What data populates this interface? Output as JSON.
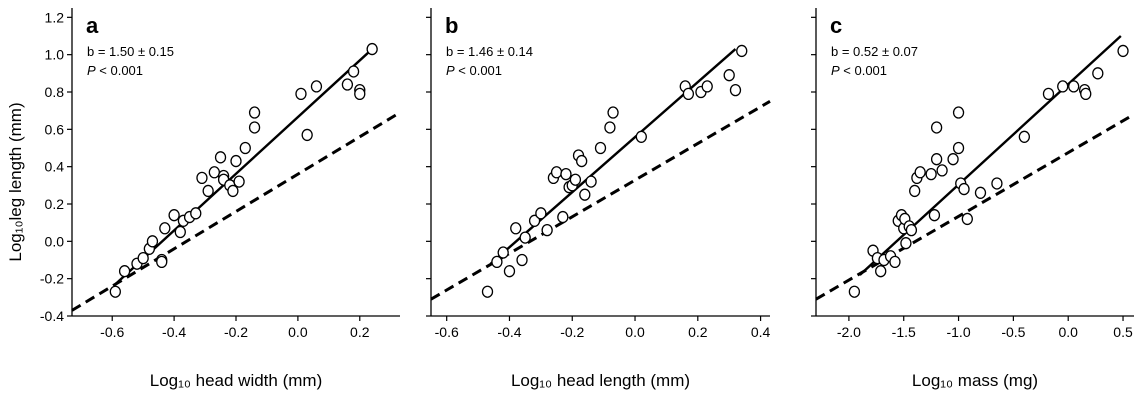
{
  "figure": {
    "y_axis_title": "Log₁₀leg length (mm)"
  },
  "chart_data": [
    {
      "type": "scatter",
      "panel_letter": "a",
      "stat_b": "b = 1.50 ± 0.15",
      "stat_p_label": "P",
      "stat_p_value": " < 0.001",
      "xlabel": "Log₁₀ head width (mm)",
      "ylabel": "Log₁₀leg length (mm)",
      "xlim": [
        -0.73,
        0.33
      ],
      "ylim": [
        -0.4,
        1.25
      ],
      "xticks": [
        -0.6,
        -0.4,
        -0.2,
        0.0,
        0.2
      ],
      "xtick_labels": [
        "-0.6",
        "-0.4",
        "-0.2",
        "0.0",
        "0.2"
      ],
      "yticks": [
        -0.4,
        -0.2,
        0.0,
        0.2,
        0.4,
        0.6,
        0.8,
        1.0,
        1.2
      ],
      "ytick_labels": [
        "-0.4",
        "-0.2",
        "0.0",
        "0.2",
        "0.4",
        "0.6",
        "0.8",
        "1.0",
        "1.2"
      ],
      "show_y_tick_labels": true,
      "points": [
        [
          -0.59,
          -0.27
        ],
        [
          -0.56,
          -0.16
        ],
        [
          -0.52,
          -0.12
        ],
        [
          -0.5,
          -0.09
        ],
        [
          -0.48,
          -0.04
        ],
        [
          -0.47,
          0.0
        ],
        [
          -0.44,
          -0.1
        ],
        [
          -0.44,
          -0.11
        ],
        [
          -0.43,
          0.07
        ],
        [
          -0.4,
          0.14
        ],
        [
          -0.38,
          0.05
        ],
        [
          -0.37,
          0.11
        ],
        [
          -0.35,
          0.13
        ],
        [
          -0.33,
          0.15
        ],
        [
          -0.31,
          0.34
        ],
        [
          -0.29,
          0.27
        ],
        [
          -0.27,
          0.37
        ],
        [
          -0.25,
          0.45
        ],
        [
          -0.24,
          0.35
        ],
        [
          -0.24,
          0.33
        ],
        [
          -0.22,
          0.3
        ],
        [
          -0.21,
          0.27
        ],
        [
          -0.2,
          0.43
        ],
        [
          -0.19,
          0.32
        ],
        [
          -0.17,
          0.5
        ],
        [
          -0.14,
          0.69
        ],
        [
          -0.14,
          0.61
        ],
        [
          0.01,
          0.79
        ],
        [
          0.03,
          0.57
        ],
        [
          0.06,
          0.83
        ],
        [
          0.16,
          0.84
        ],
        [
          0.18,
          0.91
        ],
        [
          0.2,
          0.81
        ],
        [
          0.2,
          0.79
        ],
        [
          0.24,
          1.03
        ]
      ],
      "solid_line": [
        [
          -0.59,
          -0.23
        ],
        [
          0.24,
          1.03
        ]
      ],
      "dashed_line": [
        [
          -0.73,
          -0.37
        ],
        [
          0.33,
          0.69
        ]
      ]
    },
    {
      "type": "scatter",
      "panel_letter": "b",
      "stat_b": "b = 1.46 ± 0.14",
      "stat_p_label": "P",
      "stat_p_value": " < 0.001",
      "xlabel": "Log₁₀ head length (mm)",
      "ylabel": "",
      "xlim": [
        -0.65,
        0.43
      ],
      "ylim": [
        -0.4,
        1.25
      ],
      "xticks": [
        -0.6,
        -0.4,
        -0.2,
        0.0,
        0.2,
        0.4
      ],
      "xtick_labels": [
        "-0.6",
        "-0.4",
        "-0.2",
        "0.0",
        "0.2",
        "0.4"
      ],
      "yticks": [
        -0.4,
        -0.2,
        0.0,
        0.2,
        0.4,
        0.6,
        0.8,
        1.0,
        1.2
      ],
      "ytick_labels": [],
      "show_y_tick_labels": false,
      "points": [
        [
          -0.47,
          -0.27
        ],
        [
          -0.44,
          -0.11
        ],
        [
          -0.42,
          -0.06
        ],
        [
          -0.4,
          -0.16
        ],
        [
          -0.38,
          0.07
        ],
        [
          -0.36,
          -0.1
        ],
        [
          -0.35,
          0.02
        ],
        [
          -0.32,
          0.11
        ],
        [
          -0.3,
          0.15
        ],
        [
          -0.28,
          0.06
        ],
        [
          -0.26,
          0.34
        ],
        [
          -0.25,
          0.37
        ],
        [
          -0.23,
          0.13
        ],
        [
          -0.22,
          0.36
        ],
        [
          -0.21,
          0.29
        ],
        [
          -0.2,
          0.3
        ],
        [
          -0.19,
          0.33
        ],
        [
          -0.18,
          0.46
        ],
        [
          -0.17,
          0.43
        ],
        [
          -0.16,
          0.25
        ],
        [
          -0.14,
          0.32
        ],
        [
          -0.11,
          0.5
        ],
        [
          -0.08,
          0.61
        ],
        [
          -0.07,
          0.69
        ],
        [
          0.02,
          0.56
        ],
        [
          0.16,
          0.83
        ],
        [
          0.17,
          0.79
        ],
        [
          0.21,
          0.8
        ],
        [
          0.23,
          0.83
        ],
        [
          0.3,
          0.89
        ],
        [
          0.32,
          0.81
        ],
        [
          0.34,
          1.02
        ]
      ],
      "solid_line": [
        [
          -0.46,
          -0.12
        ],
        [
          0.32,
          1.03
        ]
      ],
      "dashed_line": [
        [
          -0.65,
          -0.31
        ],
        [
          0.43,
          0.75
        ]
      ]
    },
    {
      "type": "scatter",
      "panel_letter": "c",
      "stat_b": "b = 0.52 ± 0.07",
      "stat_p_label": "P",
      "stat_p_value": " < 0.001",
      "xlabel": "Log₁₀ mass (mg)",
      "ylabel": "",
      "xlim": [
        -2.3,
        0.6
      ],
      "ylim": [
        -0.4,
        1.25
      ],
      "xticks": [
        -2.0,
        -1.5,
        -1.0,
        -0.5,
        0.0,
        0.5
      ],
      "xtick_labels": [
        "-2.0",
        "-1.5",
        "-1.0",
        "-0.5",
        "0.0",
        "0.5"
      ],
      "yticks": [
        -0.4,
        -0.2,
        0.0,
        0.2,
        0.4,
        0.6,
        0.8,
        1.0,
        1.2
      ],
      "ytick_labels": [],
      "show_y_tick_labels": false,
      "points": [
        [
          -1.95,
          -0.27
        ],
        [
          -1.78,
          -0.05
        ],
        [
          -1.74,
          -0.09
        ],
        [
          -1.71,
          -0.16
        ],
        [
          -1.68,
          -0.1
        ],
        [
          -1.62,
          -0.08
        ],
        [
          -1.58,
          -0.11
        ],
        [
          -1.55,
          0.11
        ],
        [
          -1.52,
          0.14
        ],
        [
          -1.5,
          0.07
        ],
        [
          -1.49,
          0.12
        ],
        [
          -1.48,
          -0.01
        ],
        [
          -1.45,
          0.08
        ],
        [
          -1.43,
          0.06
        ],
        [
          -1.4,
          0.27
        ],
        [
          -1.38,
          0.34
        ],
        [
          -1.35,
          0.37
        ],
        [
          -1.25,
          0.36
        ],
        [
          -1.22,
          0.14
        ],
        [
          -1.2,
          0.61
        ],
        [
          -1.2,
          0.44
        ],
        [
          -1.15,
          0.38
        ],
        [
          -1.05,
          0.44
        ],
        [
          -1.0,
          0.69
        ],
        [
          -1.0,
          0.5
        ],
        [
          -0.98,
          0.31
        ],
        [
          -0.95,
          0.28
        ],
        [
          -0.92,
          0.12
        ],
        [
          -0.8,
          0.26
        ],
        [
          -0.65,
          0.31
        ],
        [
          -0.4,
          0.56
        ],
        [
          -0.18,
          0.79
        ],
        [
          -0.05,
          0.83
        ],
        [
          0.05,
          0.83
        ],
        [
          0.15,
          0.81
        ],
        [
          0.16,
          0.79
        ],
        [
          0.27,
          0.9
        ],
        [
          0.5,
          1.02
        ]
      ],
      "solid_line": [
        [
          -1.9,
          -0.18
        ],
        [
          0.48,
          1.1
        ]
      ],
      "dashed_line": [
        [
          -2.3,
          -0.31
        ],
        [
          0.6,
          0.68
        ]
      ]
    }
  ]
}
